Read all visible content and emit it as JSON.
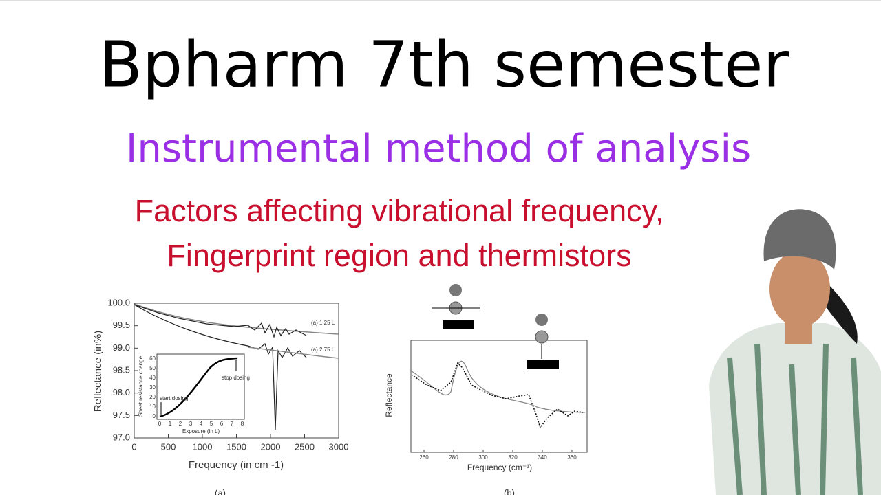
{
  "header": {
    "title": "Bpharm 7th semester",
    "subtitle": "Instrumental method of analysis",
    "topic": [
      "Factors affecting vibrational frequency,",
      "Fingerprint region and thermistors"
    ]
  },
  "figure_a": {
    "y_label": "Reflectance (in%)",
    "x_label": "Frequency (in cm -1)",
    "yticks": [
      "100.0",
      "99.5",
      "99.0",
      "98.5",
      "98.0",
      "97.5",
      "97.0"
    ],
    "xticks": [
      "0",
      "500",
      "1000",
      "1500",
      "2000",
      "2500",
      "3000"
    ],
    "annotations": [
      "(a) 1.25 L",
      "(a) 2.75 L"
    ],
    "caption": "(a)",
    "inset": {
      "y_label": "Sheet resistance change",
      "x_label": "Exposure (in L)",
      "xticks": [
        "0",
        "1",
        "2",
        "3",
        "4",
        "5",
        "6",
        "7",
        "8"
      ],
      "yticks": [
        "0",
        "10",
        "20",
        "30",
        "40",
        "50",
        "60"
      ],
      "annotations": [
        "start dosing",
        "stop dosing"
      ]
    }
  },
  "figure_b": {
    "y_label": "Reflectance",
    "x_label": "Frequency (cm⁻¹)",
    "xticks": [
      "260",
      "280",
      "300",
      "320",
      "340",
      "360"
    ],
    "caption": "(b)"
  }
}
